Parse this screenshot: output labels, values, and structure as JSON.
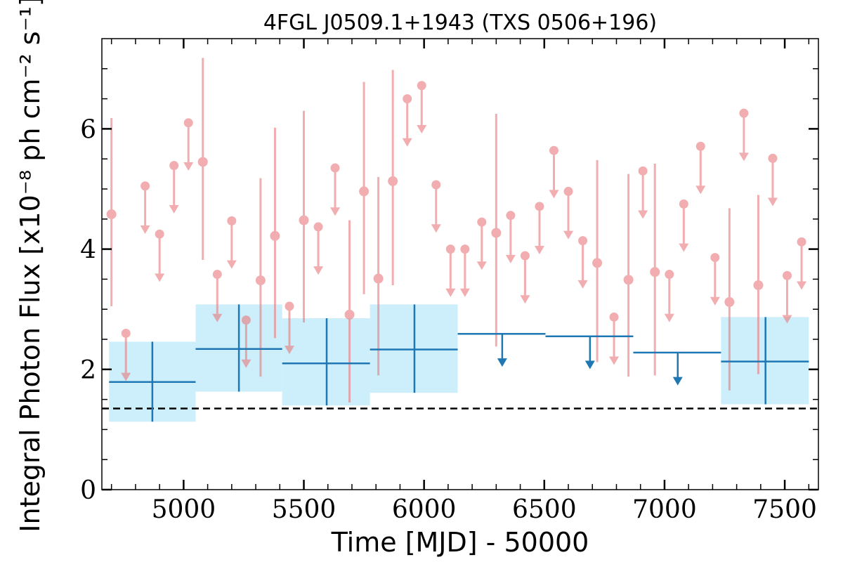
{
  "chart_data": {
    "type": "scatter",
    "title": "4FGL J0509.1+1943 (TXS 0506+196)",
    "xlabel": "Time [MJD] - 50000",
    "ylabel": "Integral Photon Flux [x10⁻⁸ ph cm⁻² s⁻¹]",
    "xlim": [
      4660,
      7640
    ],
    "ylim": [
      0,
      7.5
    ],
    "xticks": [
      5000,
      5500,
      6000,
      6500,
      7000,
      7500
    ],
    "yticks": [
      0,
      2,
      4,
      6
    ],
    "grid": false,
    "reference_line": {
      "y": 1.35,
      "style": "dashed",
      "color": "#000000"
    },
    "colors": {
      "short_bins": "#e8787c",
      "long_bins": "#1f77b4",
      "long_band": "#cdeefb"
    },
    "short_bins": {
      "detections": [
        {
          "x": 4700,
          "y": 4.58,
          "ylo": 3.05,
          "yhi": 6.18
        },
        {
          "x": 5080,
          "y": 5.45,
          "ylo": 3.82,
          "yhi": 7.18
        },
        {
          "x": 5320,
          "y": 3.48,
          "ylo": 1.88,
          "yhi": 5.18
        },
        {
          "x": 5380,
          "y": 4.22,
          "ylo": 2.52,
          "yhi": 6.02
        },
        {
          "x": 5500,
          "y": 4.48,
          "ylo": 2.78,
          "yhi": 6.3
        },
        {
          "x": 5690,
          "y": 2.91,
          "ylo": 1.45,
          "yhi": 4.48
        },
        {
          "x": 5750,
          "y": 4.96,
          "ylo": 3.25,
          "yhi": 6.78
        },
        {
          "x": 5810,
          "y": 3.51,
          "ylo": 1.9,
          "yhi": 5.2
        },
        {
          "x": 5870,
          "y": 5.13,
          "ylo": 3.4,
          "yhi": 6.98
        },
        {
          "x": 6300,
          "y": 4.27,
          "ylo": 2.38,
          "yhi": 6.25
        },
        {
          "x": 6720,
          "y": 3.77,
          "ylo": 2.12,
          "yhi": 5.48
        },
        {
          "x": 6850,
          "y": 3.49,
          "ylo": 1.88,
          "yhi": 5.25
        },
        {
          "x": 6960,
          "y": 3.62,
          "ylo": 1.9,
          "yhi": 5.42
        },
        {
          "x": 7270,
          "y": 3.12,
          "ylo": 1.65,
          "yhi": 4.68
        },
        {
          "x": 7390,
          "y": 3.4,
          "ylo": 1.92,
          "yhi": 4.9
        }
      ],
      "upper_limits": [
        {
          "x": 4760,
          "y": 2.6
        },
        {
          "x": 4840,
          "y": 5.05
        },
        {
          "x": 4900,
          "y": 4.25
        },
        {
          "x": 4960,
          "y": 5.39
        },
        {
          "x": 5020,
          "y": 6.1
        },
        {
          "x": 5140,
          "y": 3.58
        },
        {
          "x": 5200,
          "y": 4.47
        },
        {
          "x": 5260,
          "y": 2.82
        },
        {
          "x": 5440,
          "y": 3.05
        },
        {
          "x": 5560,
          "y": 4.37
        },
        {
          "x": 5630,
          "y": 5.35
        },
        {
          "x": 5930,
          "y": 6.5
        },
        {
          "x": 5990,
          "y": 6.72
        },
        {
          "x": 6050,
          "y": 5.07
        },
        {
          "x": 6110,
          "y": 4.0
        },
        {
          "x": 6170,
          "y": 4.0
        },
        {
          "x": 6240,
          "y": 4.45
        },
        {
          "x": 6360,
          "y": 4.56
        },
        {
          "x": 6420,
          "y": 3.89
        },
        {
          "x": 6480,
          "y": 4.71
        },
        {
          "x": 6540,
          "y": 5.64
        },
        {
          "x": 6600,
          "y": 4.96
        },
        {
          "x": 6660,
          "y": 4.14
        },
        {
          "x": 6790,
          "y": 2.87
        },
        {
          "x": 6910,
          "y": 5.3
        },
        {
          "x": 7020,
          "y": 3.58
        },
        {
          "x": 7080,
          "y": 4.75
        },
        {
          "x": 7150,
          "y": 5.71
        },
        {
          "x": 7210,
          "y": 3.86
        },
        {
          "x": 7330,
          "y": 6.26
        },
        {
          "x": 7450,
          "y": 5.51
        },
        {
          "x": 7510,
          "y": 3.56
        },
        {
          "x": 7570,
          "y": 4.12
        }
      ]
    },
    "long_bins": {
      "detections": [
        {
          "x0": 4690,
          "x1": 5050,
          "x": 4870,
          "y": 1.79,
          "ylo": 1.13,
          "yhi": 2.46
        },
        {
          "x0": 5050,
          "x1": 5410,
          "x": 5230,
          "y": 2.34,
          "ylo": 1.63,
          "yhi": 3.08
        },
        {
          "x0": 5410,
          "x1": 5775,
          "x": 5595,
          "y": 2.1,
          "ylo": 1.4,
          "yhi": 2.85
        },
        {
          "x0": 5775,
          "x1": 6140,
          "x": 5960,
          "y": 2.33,
          "ylo": 1.61,
          "yhi": 3.08
        },
        {
          "x0": 7235,
          "x1": 7600,
          "x": 7420,
          "y": 2.13,
          "ylo": 1.42,
          "yhi": 2.87
        }
      ],
      "upper_limits": [
        {
          "x0": 6140,
          "x1": 6505,
          "x": 6325,
          "y": 2.59
        },
        {
          "x0": 6505,
          "x1": 6870,
          "x": 6690,
          "y": 2.55
        },
        {
          "x0": 6870,
          "x1": 7235,
          "x": 7055,
          "y": 2.28
        }
      ]
    }
  }
}
